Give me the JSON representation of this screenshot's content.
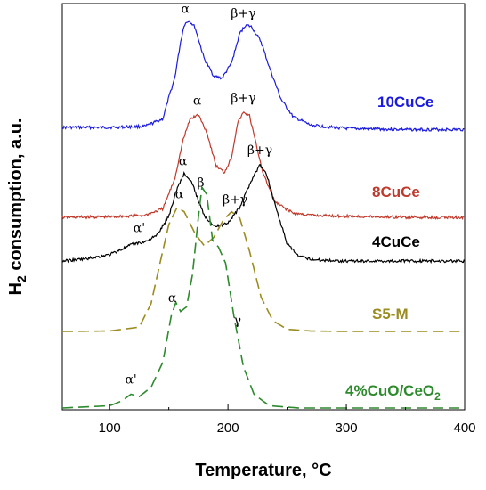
{
  "chart_data": {
    "type": "line",
    "title": "",
    "xlabel": "Temperature, °C",
    "ylabel_main": "H",
    "ylabel_sub": "2",
    "ylabel_rest": " consumption, a.u.",
    "xlim": [
      60,
      400
    ],
    "xticks": [
      100,
      200,
      300,
      400
    ],
    "grid": false,
    "series": [
      {
        "name": "10CuCe",
        "color": "#1a1adf",
        "dash": "solid",
        "points": [
          [
            60,
            0.12
          ],
          [
            100,
            0.12
          ],
          [
            130,
            0.125
          ],
          [
            145,
            0.16
          ],
          [
            150,
            0.26
          ],
          [
            155,
            0.35
          ],
          [
            160,
            0.52
          ],
          [
            163,
            0.6
          ],
          [
            167,
            0.62
          ],
          [
            172,
            0.59
          ],
          [
            180,
            0.44
          ],
          [
            188,
            0.36
          ],
          [
            195,
            0.35
          ],
          [
            203,
            0.42
          ],
          [
            210,
            0.56
          ],
          [
            215,
            0.6
          ],
          [
            220,
            0.59
          ],
          [
            228,
            0.52
          ],
          [
            235,
            0.4
          ],
          [
            245,
            0.25
          ],
          [
            255,
            0.17
          ],
          [
            270,
            0.13
          ],
          [
            300,
            0.115
          ],
          [
            350,
            0.11
          ],
          [
            400,
            0.11
          ]
        ],
        "annotations": [
          {
            "text": "α",
            "x": 164
          },
          {
            "text": "β+γ",
            "x": 213
          }
        ]
      },
      {
        "name": "8CuCe",
        "color": "#c0392b",
        "dash": "solid",
        "points": [
          [
            60,
            0.12
          ],
          [
            100,
            0.122
          ],
          [
            130,
            0.13
          ],
          [
            145,
            0.16
          ],
          [
            155,
            0.3
          ],
          [
            162,
            0.48
          ],
          [
            168,
            0.58
          ],
          [
            175,
            0.6
          ],
          [
            182,
            0.52
          ],
          [
            190,
            0.36
          ],
          [
            197,
            0.33
          ],
          [
            203,
            0.4
          ],
          [
            208,
            0.56
          ],
          [
            213,
            0.61
          ],
          [
            218,
            0.6
          ],
          [
            223,
            0.48
          ],
          [
            230,
            0.32
          ],
          [
            240,
            0.19
          ],
          [
            255,
            0.14
          ],
          [
            270,
            0.13
          ],
          [
            300,
            0.125
          ],
          [
            350,
            0.12
          ],
          [
            400,
            0.12
          ]
        ],
        "annotations": [
          {
            "text": "α",
            "x": 174
          },
          {
            "text": "β+γ",
            "x": 213
          }
        ]
      },
      {
        "name": "4CuCe",
        "color": "#000000",
        "dash": "solid",
        "points": [
          [
            60,
            0.12
          ],
          [
            80,
            0.13
          ],
          [
            100,
            0.15
          ],
          [
            120,
            0.2
          ],
          [
            130,
            0.21
          ],
          [
            140,
            0.24
          ],
          [
            150,
            0.33
          ],
          [
            157,
            0.46
          ],
          [
            163,
            0.53
          ],
          [
            170,
            0.48
          ],
          [
            180,
            0.33
          ],
          [
            190,
            0.28
          ],
          [
            200,
            0.3
          ],
          [
            210,
            0.37
          ],
          [
            220,
            0.5
          ],
          [
            227,
            0.57
          ],
          [
            233,
            0.52
          ],
          [
            240,
            0.38
          ],
          [
            250,
            0.2
          ],
          [
            260,
            0.14
          ],
          [
            275,
            0.125
          ],
          [
            300,
            0.12
          ],
          [
            350,
            0.12
          ],
          [
            400,
            0.12
          ]
        ],
        "annotations": [
          {
            "text": "α'",
            "x": 125
          },
          {
            "text": "α",
            "x": 162
          },
          {
            "text": "β+γ",
            "x": 227
          }
        ]
      },
      {
        "name": "S5-M",
        "color": "#9a8c20",
        "dash": "dashed",
        "points": [
          [
            60,
            0.12
          ],
          [
            100,
            0.122
          ],
          [
            125,
            0.14
          ],
          [
            135,
            0.25
          ],
          [
            143,
            0.45
          ],
          [
            150,
            0.62
          ],
          [
            157,
            0.7
          ],
          [
            163,
            0.68
          ],
          [
            172,
            0.58
          ],
          [
            180,
            0.52
          ],
          [
            188,
            0.56
          ],
          [
            196,
            0.64
          ],
          [
            203,
            0.68
          ],
          [
            210,
            0.65
          ],
          [
            218,
            0.5
          ],
          [
            228,
            0.28
          ],
          [
            238,
            0.17
          ],
          [
            250,
            0.13
          ],
          [
            270,
            0.122
          ],
          [
            300,
            0.12
          ],
          [
            350,
            0.12
          ],
          [
            400,
            0.12
          ]
        ],
        "annotations": [
          {
            "text": "α",
            "x": 159
          },
          {
            "text": "β+γ",
            "x": 206
          }
        ]
      },
      {
        "name": "4%CuO/CeO",
        "name_sub": "2",
        "color": "#2d8a2d",
        "dash": "dashed",
        "points": [
          [
            60,
            0.12
          ],
          [
            100,
            0.13
          ],
          [
            110,
            0.15
          ],
          [
            118,
            0.18
          ],
          [
            125,
            0.17
          ],
          [
            135,
            0.21
          ],
          [
            145,
            0.32
          ],
          [
            152,
            0.52
          ],
          [
            156,
            0.58
          ],
          [
            160,
            0.54
          ],
          [
            165,
            0.56
          ],
          [
            170,
            0.7
          ],
          [
            175,
            0.95
          ],
          [
            178,
            1.08
          ],
          [
            182,
            1.05
          ],
          [
            187,
            0.85
          ],
          [
            192,
            0.82
          ],
          [
            198,
            0.75
          ],
          [
            205,
            0.52
          ],
          [
            213,
            0.3
          ],
          [
            222,
            0.18
          ],
          [
            235,
            0.13
          ],
          [
            260,
            0.12
          ],
          [
            300,
            0.12
          ],
          [
            400,
            0.12
          ]
        ],
        "annotations": [
          {
            "text": "α'",
            "x": 118
          },
          {
            "text": "α",
            "x": 153
          },
          {
            "text": "β",
            "x": 177
          },
          {
            "text": "γ",
            "x": 208
          }
        ]
      }
    ]
  }
}
